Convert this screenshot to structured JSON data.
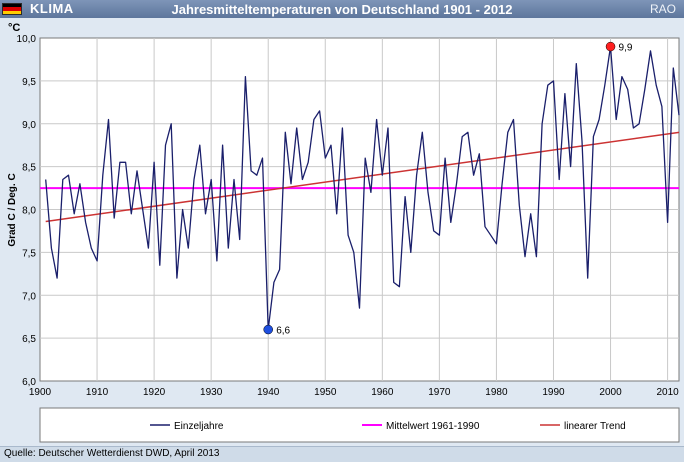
{
  "header": {
    "brand": "KLIMA",
    "title": "Jahresmitteltemperaturen von Deutschland 1901 - 2012",
    "org": "RAO"
  },
  "footer": {
    "source": "Quelle: Deutscher Wetterdienst DWD, April 2013"
  },
  "colors": {
    "flag": [
      "#000000",
      "#dd0000",
      "#ffcc00"
    ],
    "series_line": "#1a1f6b",
    "mean_line": "#ff00ff",
    "trend_line": "#cc3333",
    "max_marker": "#ff2020",
    "min_marker": "#1e4fe0"
  },
  "chart_data": {
    "type": "line",
    "unit_label": "°C",
    "ylabel": "Grad C / Deg. C",
    "xlim": [
      1900,
      2012
    ],
    "ylim": [
      6.0,
      10.0
    ],
    "y_ticks": [
      "6,0",
      "6,5",
      "7,0",
      "7,5",
      "8,0",
      "8,5",
      "9,0",
      "9,5",
      "10,0"
    ],
    "x_ticks": [
      "1900",
      "1910",
      "1920",
      "1930",
      "1940",
      "1950",
      "1960",
      "1970",
      "1980",
      "1990",
      "2000",
      "2010"
    ],
    "grid": true,
    "legend_position": "bottom",
    "series": [
      {
        "name": "Einzeljahre",
        "x": [
          1901,
          1902,
          1903,
          1904,
          1905,
          1906,
          1907,
          1908,
          1909,
          1910,
          1911,
          1912,
          1913,
          1914,
          1915,
          1916,
          1917,
          1918,
          1919,
          1920,
          1921,
          1922,
          1923,
          1924,
          1925,
          1926,
          1927,
          1928,
          1929,
          1930,
          1931,
          1932,
          1933,
          1934,
          1935,
          1936,
          1937,
          1938,
          1939,
          1940,
          1941,
          1942,
          1943,
          1944,
          1945,
          1946,
          1947,
          1948,
          1949,
          1950,
          1951,
          1952,
          1953,
          1954,
          1955,
          1956,
          1957,
          1958,
          1959,
          1960,
          1961,
          1962,
          1963,
          1964,
          1965,
          1966,
          1967,
          1968,
          1969,
          1970,
          1971,
          1972,
          1973,
          1974,
          1975,
          1976,
          1977,
          1978,
          1979,
          1980,
          1981,
          1982,
          1983,
          1984,
          1985,
          1986,
          1987,
          1988,
          1989,
          1990,
          1991,
          1992,
          1993,
          1994,
          1995,
          1996,
          1997,
          1998,
          1999,
          2000,
          2001,
          2002,
          2003,
          2004,
          2005,
          2006,
          2007,
          2008,
          2009,
          2010,
          2011,
          2012
        ],
        "y": [
          8.35,
          7.55,
          7.2,
          8.35,
          8.4,
          7.95,
          8.3,
          7.85,
          7.55,
          7.4,
          8.4,
          9.05,
          7.9,
          8.55,
          8.55,
          7.95,
          8.45,
          8.0,
          7.55,
          8.55,
          7.35,
          8.75,
          9.0,
          7.2,
          8.0,
          7.55,
          8.35,
          8.75,
          7.95,
          8.35,
          7.4,
          8.75,
          7.55,
          8.35,
          7.65,
          9.55,
          8.45,
          8.4,
          8.6,
          6.6,
          7.15,
          7.3,
          8.9,
          8.3,
          8.95,
          8.35,
          8.55,
          9.05,
          9.15,
          8.6,
          8.75,
          7.95,
          8.95,
          7.7,
          7.5,
          6.85,
          8.6,
          8.2,
          9.05,
          8.4,
          8.95,
          7.15,
          7.1,
          8.15,
          7.5,
          8.4,
          8.9,
          8.2,
          7.75,
          7.7,
          8.6,
          7.85,
          8.3,
          8.85,
          8.9,
          8.4,
          8.65,
          7.8,
          7.7,
          7.6,
          8.3,
          8.9,
          9.05,
          8.05,
          7.45,
          7.95,
          7.45,
          9.0,
          9.45,
          9.5,
          8.35,
          9.35,
          8.5,
          9.7,
          8.8,
          7.2,
          8.85,
          9.05,
          9.45,
          9.9,
          9.05,
          9.55,
          9.4,
          8.95,
          9.0,
          9.4,
          9.85,
          9.45,
          9.2,
          7.85,
          9.65,
          9.1
        ]
      },
      {
        "name": "Mittelwert 1961-1990",
        "value": 8.25
      },
      {
        "name": "linearer Trend",
        "x": [
          1901,
          2012
        ],
        "y": [
          7.86,
          8.9
        ]
      }
    ],
    "annotations": [
      {
        "label": "9,9",
        "x": 2000,
        "y": 9.9,
        "marker": "max"
      },
      {
        "label": "6,6",
        "x": 1940,
        "y": 6.6,
        "marker": "min"
      }
    ]
  }
}
